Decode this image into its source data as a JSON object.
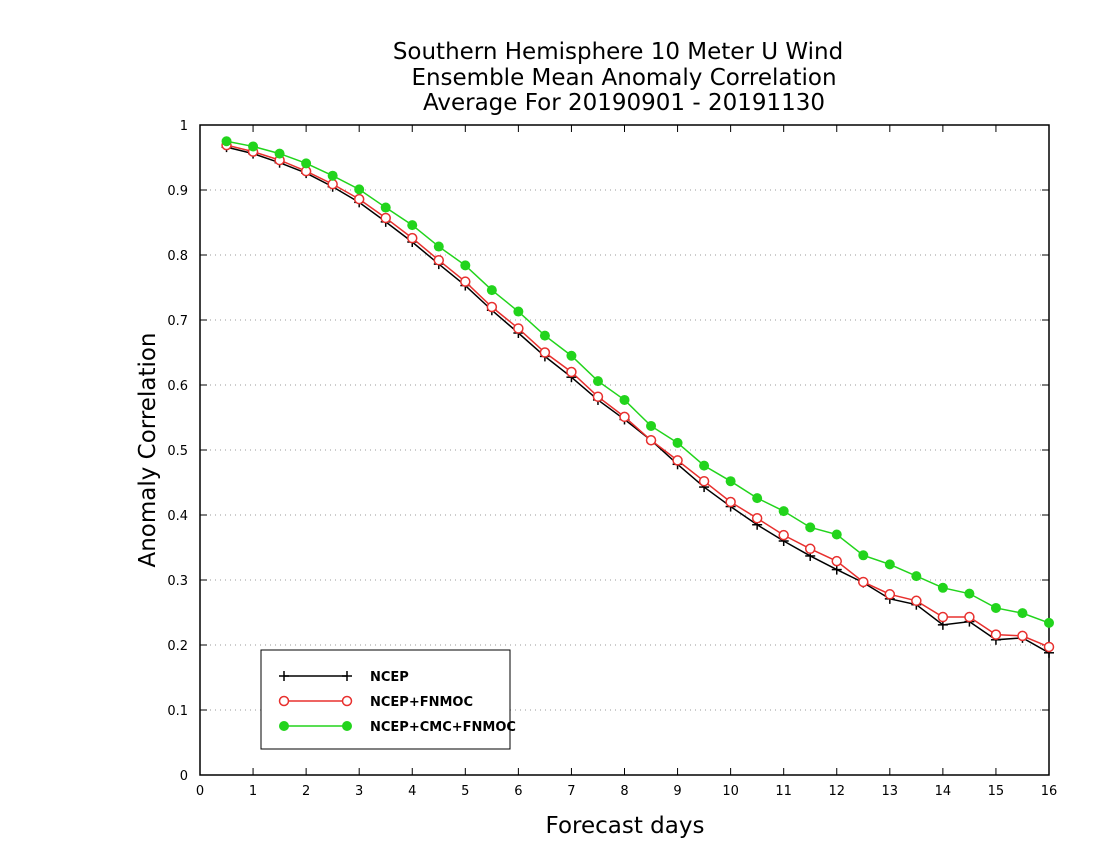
{
  "chart_data": {
    "type": "line",
    "title_lines": [
      "Southern Hemisphere 10 Meter U Wind",
      "Ensemble Mean Anomaly Correlation",
      "Average For 20190901 - 20191130"
    ],
    "xlabel": "Forecast days",
    "ylabel": "Anomaly Correlation",
    "xlim": [
      0,
      16
    ],
    "ylim": [
      0,
      1
    ],
    "x_ticks": [
      "0",
      "1",
      "2",
      "3",
      "4",
      "5",
      "6",
      "7",
      "8",
      "9",
      "10",
      "11",
      "12",
      "13",
      "14",
      "15",
      "16"
    ],
    "y_ticks": [
      "0",
      "0.1",
      "0.2",
      "0.3",
      "0.4",
      "0.5",
      "0.6",
      "0.7",
      "0.8",
      "0.9",
      "1"
    ],
    "grid": "horizontal-dotted",
    "legend_position": "bottom-left",
    "x": [
      0.5,
      1,
      1.5,
      2,
      2.5,
      3,
      3.5,
      4,
      4.5,
      5,
      5.5,
      6,
      6.5,
      7,
      7.5,
      8,
      8.5,
      9,
      9.5,
      10,
      10.5,
      11,
      11.5,
      12,
      12.5,
      13,
      13.5,
      14,
      14.5,
      15,
      15.5,
      16
    ],
    "series": [
      {
        "name": "NCEP",
        "color": "#000000",
        "marker": "plus",
        "values": [
          0.966,
          0.956,
          0.942,
          0.926,
          0.905,
          0.881,
          0.851,
          0.82,
          0.786,
          0.753,
          0.715,
          0.68,
          0.644,
          0.612,
          0.577,
          0.547,
          0.515,
          0.478,
          0.443,
          0.413,
          0.385,
          0.36,
          0.337,
          0.316,
          0.296,
          0.271,
          0.262,
          0.231,
          0.236,
          0.208,
          0.211,
          0.188
        ]
      },
      {
        "name": "NCEP+FNMOC",
        "color": "#e8302e",
        "marker": "open-circle",
        "values": [
          0.969,
          0.959,
          0.946,
          0.929,
          0.909,
          0.886,
          0.857,
          0.826,
          0.792,
          0.759,
          0.72,
          0.687,
          0.65,
          0.62,
          0.582,
          0.551,
          0.515,
          0.484,
          0.452,
          0.42,
          0.395,
          0.369,
          0.348,
          0.329,
          0.297,
          0.278,
          0.268,
          0.243,
          0.243,
          0.216,
          0.214,
          0.197
        ]
      },
      {
        "name": "NCEP+CMC+FNMOC",
        "color": "#22d41c",
        "marker": "filled-circle",
        "values": [
          0.975,
          0.967,
          0.956,
          0.941,
          0.922,
          0.901,
          0.873,
          0.846,
          0.813,
          0.784,
          0.746,
          0.713,
          0.676,
          0.645,
          0.606,
          0.577,
          0.537,
          0.511,
          0.476,
          0.452,
          0.426,
          0.406,
          0.381,
          0.37,
          0.338,
          0.324,
          0.306,
          0.288,
          0.279,
          0.257,
          0.249,
          0.234
        ]
      }
    ]
  }
}
